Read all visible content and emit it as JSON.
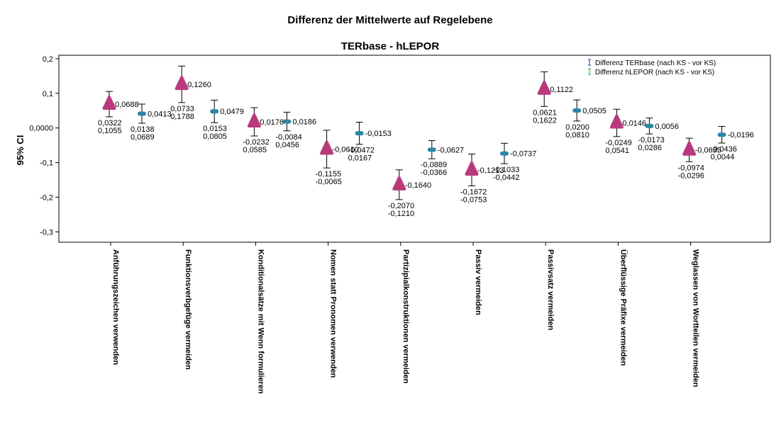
{
  "chart_data": {
    "type": "scatter",
    "title": "Differenz der Mittelwerte auf Regelebene",
    "subtitle": "TERbase - hLEPOR",
    "ylabel": "95% CI",
    "xlabel": "",
    "ylim": [
      -0.33,
      0.21
    ],
    "yticks": [
      0.2,
      0.1,
      0.0,
      -0.1,
      -0.2,
      -0.3
    ],
    "ytick_labels": [
      "0,2",
      "0,1",
      "0,0000",
      "-0,1",
      "-0,2",
      "-0,3"
    ],
    "categories": [
      "Anführungszeichen verwenden",
      "Funktionsverbgefüge vermeiden",
      "Konditionalsätze mit Wenn formulieren",
      "Nomen statt Pronomen verwenden",
      "Partizipialkonstruktionen vermeiden",
      "Passiv vermeiden",
      "Passivsatz vermeiden",
      "Überflüssige Präfixe vermeiden",
      "Weglassen von Wortteilen vermeiden"
    ],
    "legend_position": "top-right",
    "grid": false,
    "series": [
      {
        "name": "Differenz TERbase (nach KS - vor KS)",
        "marker": "triangle",
        "color": "#b93a7c",
        "errorbar_color": "#3a3a8c",
        "values": [
          0.0688,
          0.126,
          0.0176,
          -0.061,
          -0.164,
          -0.1213,
          0.1122,
          0.0146,
          -0.0635
        ],
        "lower": [
          0.0322,
          0.0733,
          -0.0232,
          -0.1155,
          -0.207,
          -0.1672,
          0.0621,
          -0.0249,
          -0.0974
        ],
        "upper": [
          0.1055,
          0.1788,
          0.0585,
          -0.0065,
          -0.121,
          -0.0753,
          0.1622,
          0.0541,
          -0.0296
        ],
        "value_labels": [
          "0,0688",
          "0,1260",
          "0,0176",
          "-0,0610",
          "-0,1640",
          "-0,1213",
          "0,1122",
          "0,0146",
          "-0,0635"
        ],
        "lower_labels": [
          "0,0322",
          "0,0733",
          "-0,0232",
          "-0,1155",
          "-0,2070",
          "-0,1672",
          "0,0621",
          "-0,0249",
          "-0,0974"
        ],
        "upper_labels": [
          "0,1055",
          "0,1788",
          "0,0585",
          "-0,0065",
          "-0,1210",
          "-0,0753",
          "0,1622",
          "0,0541",
          "-0,0296"
        ]
      },
      {
        "name": "Differenz hLEPOR (nach KS - vor KS)",
        "marker": "circle",
        "color": "#2b86a6",
        "errorbar_color": "#2ea84a",
        "values": [
          0.0413,
          0.0479,
          0.0186,
          -0.0153,
          -0.0627,
          -0.0737,
          0.0505,
          0.0056,
          -0.0196
        ],
        "lower": [
          0.0138,
          0.0153,
          -0.0084,
          -0.0472,
          -0.0889,
          -0.1033,
          0.02,
          -0.0173,
          -0.0436
        ],
        "upper": [
          0.0689,
          0.0805,
          0.0456,
          0.0167,
          -0.0366,
          -0.0442,
          0.081,
          0.0286,
          0.0044
        ],
        "value_labels": [
          "0,0413",
          "0,0479",
          "0,0186",
          "-0,0153",
          "-0,0627",
          "-0,0737",
          "0,0505",
          "0,0056",
          "-0,0196"
        ],
        "lower_labels": [
          "0,0138",
          "0,0153",
          "-0,0084",
          "-0,0472",
          "-0,0889",
          "-0,1033",
          "0,0200",
          "-0,0173",
          "-0,0436"
        ],
        "upper_labels": [
          "0,0689",
          "0,0805",
          "0,0456",
          "0,0167",
          "-0,0366",
          "-0,0442",
          "0,0810",
          "0,0286",
          "0,0044"
        ]
      }
    ]
  }
}
